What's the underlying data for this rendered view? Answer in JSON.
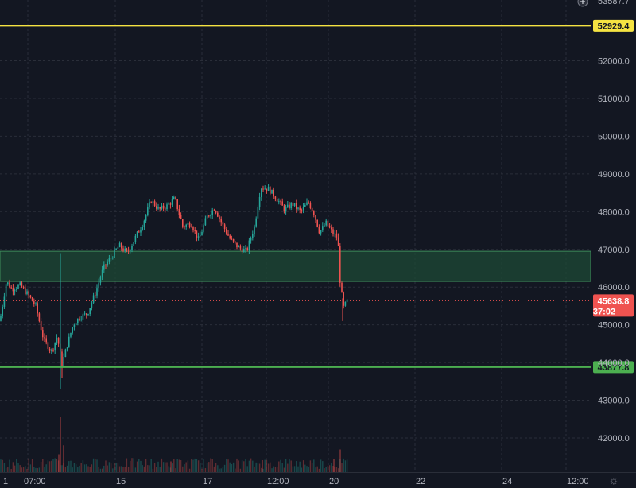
{
  "colors": {
    "background": "#131722",
    "up": "#26a69a",
    "down": "#ef5350",
    "resistance_line": "#f5e342",
    "support_line": "#4caf50",
    "zone_fill": "#1e4a35",
    "zone_border": "#3d8b5a",
    "price_tag": "#ef5350"
  },
  "top_clip_label": "53587.7",
  "add_icon": "plus-circle-icon",
  "settings_icon": "gear-icon",
  "chart_data": {
    "type": "candlestick",
    "ylim": [
      41600,
      53900
    ],
    "y_ticks": [
      "42000.0",
      "43000.0",
      "44000.0",
      "45000.0",
      "46000.0",
      "47000.0",
      "48000.0",
      "49000.0",
      "50000.0",
      "51000.0",
      "52000.0"
    ],
    "x_tick_labels": [
      "1",
      "07:00",
      "15",
      "17",
      "12:00",
      "20",
      "22",
      "24",
      "12:00"
    ],
    "horizontal_lines": [
      {
        "price": 52929.4,
        "label": "52929.4",
        "color": "#f5e342"
      },
      {
        "price": 43877.8,
        "label": "43877.8",
        "color": "#4caf50"
      }
    ],
    "zone": {
      "from": 46150,
      "to": 46950
    },
    "last_price": {
      "price": 45638.8,
      "label": "45638.8",
      "countdown": "37:02"
    },
    "price_path": [
      [
        0,
        45100
      ],
      [
        8,
        46150
      ],
      [
        15,
        45950
      ],
      [
        25,
        46050
      ],
      [
        35,
        45800
      ],
      [
        45,
        45500
      ],
      [
        55,
        44600
      ],
      [
        65,
        44300
      ],
      [
        72,
        44700
      ],
      [
        78,
        43950
      ],
      [
        85,
        44500
      ],
      [
        92,
        45000
      ],
      [
        100,
        45200
      ],
      [
        110,
        45300
      ],
      [
        120,
        45850
      ],
      [
        130,
        46500
      ],
      [
        140,
        46800
      ],
      [
        150,
        47100
      ],
      [
        160,
        46900
      ],
      [
        170,
        47300
      ],
      [
        180,
        47700
      ],
      [
        190,
        48300
      ],
      [
        200,
        48050
      ],
      [
        210,
        48150
      ],
      [
        220,
        48350
      ],
      [
        230,
        47600
      ],
      [
        240,
        47700
      ],
      [
        250,
        47250
      ],
      [
        260,
        47850
      ],
      [
        270,
        48100
      ],
      [
        280,
        47650
      ],
      [
        290,
        47250
      ],
      [
        300,
        47050
      ],
      [
        310,
        46950
      ],
      [
        320,
        47600
      ],
      [
        328,
        48650
      ],
      [
        338,
        48600
      ],
      [
        348,
        48350
      ],
      [
        358,
        48050
      ],
      [
        368,
        48200
      ],
      [
        378,
        48000
      ],
      [
        388,
        48250
      ],
      [
        395,
        47950
      ],
      [
        402,
        47450
      ],
      [
        410,
        47700
      ],
      [
        418,
        47450
      ],
      [
        425,
        47300
      ],
      [
        428,
        46100
      ],
      [
        432,
        45450
      ],
      [
        437,
        45640
      ]
    ],
    "volume": [
      [
        76,
        0.92
      ],
      [
        80,
        0.45
      ],
      [
        74,
        0.3
      ],
      [
        428,
        0.38
      ],
      [
        420,
        0.22
      ],
      [
        330,
        0.2
      ],
      [
        215,
        0.18
      ]
    ]
  }
}
